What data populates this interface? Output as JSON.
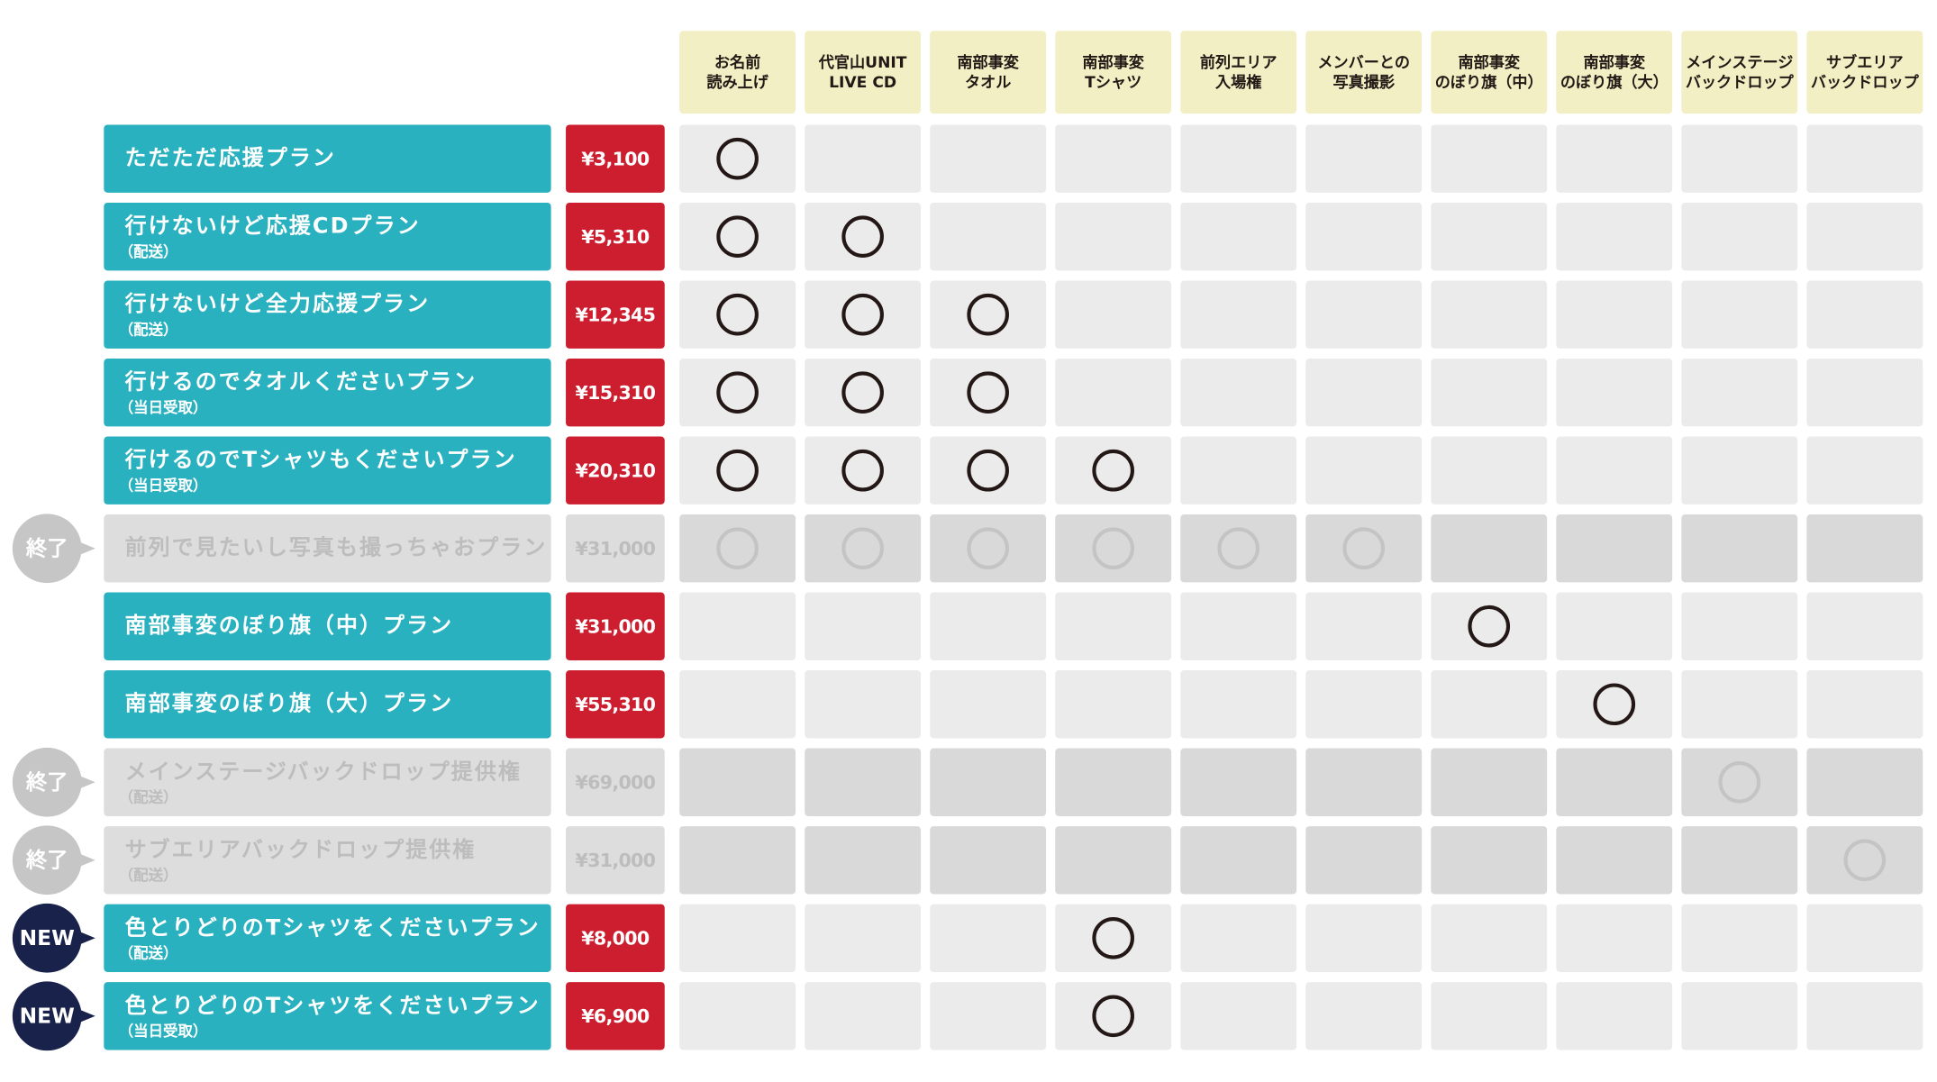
{
  "columns": [
    [
      "お名前",
      "読み上げ"
    ],
    [
      "代官山UNIT",
      "LIVE CD"
    ],
    [
      "南部事変",
      "タオル"
    ],
    [
      "南部事変",
      "Tシャツ"
    ],
    [
      "前列エリア",
      "入場権"
    ],
    [
      "メンバーとの",
      "写真撮影"
    ],
    [
      "南部事変",
      "のぼり旗（中）"
    ],
    [
      "南部事変",
      "のぼり旗（大）"
    ],
    [
      "メインステージ",
      "バックドロップ"
    ],
    [
      "サブエリア",
      "バックドロップ"
    ]
  ],
  "rows": [
    {
      "name": "ただただ応援プラン",
      "price": "¥3,100",
      "available": true,
      "included": [
        true,
        false,
        false,
        false,
        false,
        false,
        false,
        false,
        false,
        false
      ]
    },
    {
      "name": "行けないけど応援CDプラン",
      "note": "（配送）",
      "price": "¥5,310",
      "available": true,
      "included": [
        true,
        true,
        false,
        false,
        false,
        false,
        false,
        false,
        false,
        false
      ]
    },
    {
      "name": "行けないけど全力応援プラン",
      "note": "（配送）",
      "price": "¥12,345",
      "available": true,
      "included": [
        true,
        true,
        true,
        false,
        false,
        false,
        false,
        false,
        false,
        false
      ]
    },
    {
      "name": "行けるのでタオルくださいプラン",
      "note": "（当日受取）",
      "price": "¥15,310",
      "available": true,
      "included": [
        true,
        true,
        true,
        false,
        false,
        false,
        false,
        false,
        false,
        false
      ]
    },
    {
      "name": "行けるのでTシャツもくださいプラン",
      "note": "（当日受取）",
      "price": "¥20,310",
      "available": true,
      "included": [
        true,
        true,
        true,
        true,
        false,
        false,
        false,
        false,
        false,
        false
      ]
    },
    {
      "badge": "終了",
      "name": "前列で見たいし写真も撮っちゃおプラン",
      "price": "¥31,000",
      "available": false,
      "included": [
        true,
        true,
        true,
        true,
        true,
        true,
        false,
        false,
        false,
        false
      ]
    },
    {
      "name": "南部事変のぼり旗（中）プラン",
      "price": "¥31,000",
      "available": true,
      "included": [
        false,
        false,
        false,
        false,
        false,
        false,
        true,
        false,
        false,
        false
      ]
    },
    {
      "name": "南部事変のぼり旗（大）プラン",
      "price": "¥55,310",
      "available": true,
      "included": [
        false,
        false,
        false,
        false,
        false,
        false,
        false,
        true,
        false,
        false
      ]
    },
    {
      "badge": "終了",
      "name": "メインステージバックドロップ提供権",
      "note": "（配送）",
      "price": "¥69,000",
      "available": false,
      "included": [
        false,
        false,
        false,
        false,
        false,
        false,
        false,
        false,
        true,
        false
      ]
    },
    {
      "badge": "終了",
      "name": "サブエリアバックドロップ提供権",
      "note": "（配送）",
      "price": "¥31,000",
      "available": false,
      "included": [
        false,
        false,
        false,
        false,
        false,
        false,
        false,
        false,
        false,
        true
      ]
    },
    {
      "badge": "NEW",
      "name": "色とりどりのTシャツをくださいプラン",
      "note": "（配送）",
      "price": "¥8,000",
      "available": true,
      "included": [
        false,
        false,
        false,
        true,
        false,
        false,
        false,
        false,
        false,
        false
      ]
    },
    {
      "badge": "NEW",
      "name": "色とりどりのTシャツをくださいプラン",
      "note": "（当日受取）",
      "price": "¥6,900",
      "available": true,
      "included": [
        false,
        false,
        false,
        true,
        false,
        false,
        false,
        false,
        false,
        false
      ]
    }
  ]
}
